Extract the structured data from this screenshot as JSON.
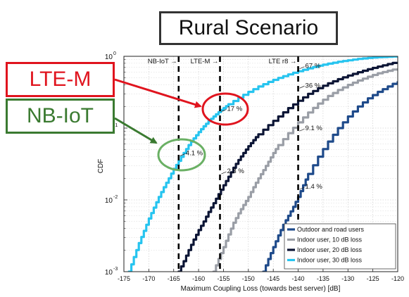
{
  "chart_data": {
    "type": "line",
    "title": "Rural Scenario",
    "xlabel": "Maximum Coupling Loss (towards best server) [dB]",
    "ylabel": "CDF",
    "xlim": [
      -175,
      -120
    ],
    "ylim": [
      0.001,
      1
    ],
    "yscale": "log",
    "grid": true,
    "legend_position": "bottom-right",
    "x_ticks": [
      "-175",
      "-170",
      "-165",
      "-160",
      "-155",
      "-150",
      "-145",
      "-140",
      "-135",
      "-130",
      "-125",
      "-120"
    ],
    "y_ticks": [
      {
        "value": 0.001,
        "base": "10",
        "exp": "-3"
      },
      {
        "value": 0.01,
        "base": "10",
        "exp": "-2"
      },
      {
        "value": 0.1,
        "base": "10",
        "exp": "-1"
      },
      {
        "value": 1,
        "base": "10",
        "exp": "0"
      }
    ],
    "series": [
      {
        "name": "Outdoor and road users",
        "color": "#1e4a8a",
        "x": [
          -147,
          -146,
          -145,
          -144,
          -143,
          -142,
          -141,
          -140,
          -139,
          -138,
          -136,
          -134,
          -132,
          -130,
          -128,
          -126,
          -124,
          -122,
          -120
        ],
        "y": [
          0.001,
          0.0015,
          0.0022,
          0.0032,
          0.0045,
          0.006,
          0.008,
          0.011,
          0.016,
          0.023,
          0.04,
          0.065,
          0.1,
          0.145,
          0.2,
          0.26,
          0.32,
          0.38,
          0.45
        ]
      },
      {
        "name": "Indoor user, 10 dB loss",
        "color": "#9a9ea6",
        "x": [
          -157,
          -156,
          -155,
          -154,
          -153,
          -152,
          -151,
          -150,
          -149,
          -148,
          -147,
          -146,
          -145,
          -144,
          -142,
          -140,
          -138,
          -136,
          -134,
          -132,
          -130,
          -128,
          -126,
          -124,
          -122,
          -120
        ],
        "y": [
          0.001,
          0.0015,
          0.0022,
          0.0033,
          0.0048,
          0.0065,
          0.0085,
          0.011,
          0.015,
          0.02,
          0.026,
          0.034,
          0.045,
          0.058,
          0.085,
          0.12,
          0.165,
          0.22,
          0.28,
          0.34,
          0.4,
          0.46,
          0.52,
          0.58,
          0.63,
          0.68
        ]
      },
      {
        "name": "Indoor user, 20 dB loss",
        "color": "#0c1535",
        "x": [
          -164,
          -163,
          -162,
          -161,
          -160,
          -159,
          -158,
          -157,
          -156,
          -155,
          -154,
          -153,
          -152,
          -151,
          -150,
          -149,
          -148,
          -146,
          -144,
          -142,
          -140,
          -138,
          -136,
          -134,
          -132,
          -130,
          -128,
          -126,
          -124,
          -122,
          -120
        ],
        "y": [
          0.001,
          0.0014,
          0.002,
          0.0028,
          0.0038,
          0.005,
          0.0068,
          0.009,
          0.012,
          0.016,
          0.021,
          0.028,
          0.036,
          0.045,
          0.056,
          0.068,
          0.082,
          0.11,
          0.145,
          0.19,
          0.24,
          0.3,
          0.36,
          0.42,
          0.48,
          0.54,
          0.6,
          0.66,
          0.72,
          0.78,
          0.84
        ]
      },
      {
        "name": "Indoor user, 30 dB loss",
        "color": "#26c4ef",
        "x": [
          -174,
          -173,
          -172,
          -171,
          -170,
          -169,
          -168,
          -167,
          -166,
          -165,
          -164,
          -163,
          -162,
          -161,
          -160,
          -159,
          -158,
          -157,
          -156,
          -155,
          -154,
          -152,
          -150,
          -148,
          -146,
          -144,
          -142,
          -140,
          -138,
          -136,
          -134,
          -132,
          -130,
          -128,
          -126,
          -124,
          -122,
          -120
        ],
        "y": [
          0.001,
          0.0016,
          0.0025,
          0.0037,
          0.0055,
          0.0078,
          0.011,
          0.015,
          0.02,
          0.027,
          0.035,
          0.045,
          0.058,
          0.072,
          0.088,
          0.106,
          0.125,
          0.145,
          0.167,
          0.19,
          0.215,
          0.265,
          0.32,
          0.38,
          0.44,
          0.5,
          0.56,
          0.62,
          0.68,
          0.74,
          0.79,
          0.84,
          0.88,
          0.92,
          0.95,
          0.97,
          0.985,
          1.0
        ]
      }
    ],
    "threshold_lines": [
      {
        "x": -164,
        "label": "NB-IoT →"
      },
      {
        "x": -155.7,
        "label": "LTE-M →"
      },
      {
        "x": -140,
        "label": "LTE r8 →"
      }
    ],
    "point_labels": [
      {
        "x": -140,
        "y": 0.67,
        "text": "67 %"
      },
      {
        "x": -140,
        "y": 0.36,
        "text": "36 %"
      },
      {
        "x": -155.7,
        "y": 0.17,
        "text": "17 %"
      },
      {
        "x": -140,
        "y": 0.091,
        "text": "9.1 %"
      },
      {
        "x": -164,
        "y": 0.041,
        "text": "4.1 %"
      },
      {
        "x": -155.7,
        "y": 0.023,
        "text": "2.3 %"
      },
      {
        "x": -140,
        "y": 0.014,
        "text": "1.4 %"
      }
    ]
  },
  "annotations": {
    "title": "Rural Scenario",
    "lte_m": "LTE-M",
    "nb_iot": "NB-IoT"
  }
}
